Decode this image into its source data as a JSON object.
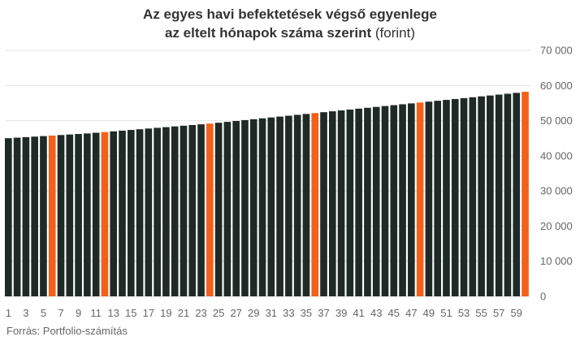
{
  "title_line1": "Az egyes havi befektetések végső egyenlege",
  "title_line2": "az eltelt hónapok száma szerint",
  "title_unit": "(forint)",
  "source": "Forrás: Portfolio-számítás",
  "colors": {
    "bar": "#1f2a26",
    "highlight": "#f2601a",
    "grid": "#e2e2e2",
    "axis_text": "#666666"
  },
  "chart_data": {
    "type": "bar",
    "title": "Az egyes havi befektetések végső egyenlege az eltelt hónapok száma szerint (forint)",
    "ylim": [
      0,
      70000
    ],
    "y_ticks": [
      0,
      10000,
      20000,
      30000,
      40000,
      50000,
      60000,
      70000
    ],
    "y_tick_labels": [
      "0",
      "10 000",
      "20 000",
      "30 000",
      "40 000",
      "50 000",
      "60 000",
      "70 000"
    ],
    "y_axis_position": "right",
    "grid": true,
    "x_tick_labels": [
      "1",
      "3",
      "5",
      "7",
      "9",
      "11",
      "13",
      "15",
      "17",
      "19",
      "21",
      "23",
      "25",
      "27",
      "29",
      "31",
      "33",
      "35",
      "37",
      "39",
      "41",
      "43",
      "45",
      "47",
      "49",
      "51",
      "53",
      "55",
      "57",
      "59"
    ],
    "categories": [
      1,
      2,
      3,
      4,
      5,
      6,
      7,
      8,
      9,
      10,
      11,
      12,
      13,
      14,
      15,
      16,
      17,
      18,
      19,
      20,
      21,
      22,
      23,
      24,
      25,
      26,
      27,
      28,
      29,
      30,
      31,
      32,
      33,
      34,
      35,
      36,
      37,
      38,
      39,
      40,
      41,
      42,
      43,
      44,
      45,
      46,
      47,
      48,
      49,
      50,
      51,
      52,
      53,
      54,
      55,
      56,
      57,
      58,
      59,
      60
    ],
    "values": [
      45000,
      45150,
      45300,
      45450,
      45600,
      45750,
      45900,
      46050,
      46200,
      46350,
      46550,
      46750,
      46950,
      47150,
      47350,
      47550,
      47750,
      47950,
      48150,
      48350,
      48550,
      48750,
      48950,
      49150,
      49400,
      49650,
      49900,
      50150,
      50400,
      50650,
      50900,
      51150,
      51400,
      51650,
      51900,
      52150,
      52400,
      52650,
      52900,
      53150,
      53400,
      53650,
      53900,
      54150,
      54400,
      54650,
      54900,
      55150,
      55400,
      55650,
      55900,
      56150,
      56400,
      56650,
      56900,
      57150,
      57400,
      57650,
      57900,
      58200
    ],
    "highlighted_categories": [
      6,
      12,
      24,
      36,
      48,
      60
    ]
  }
}
